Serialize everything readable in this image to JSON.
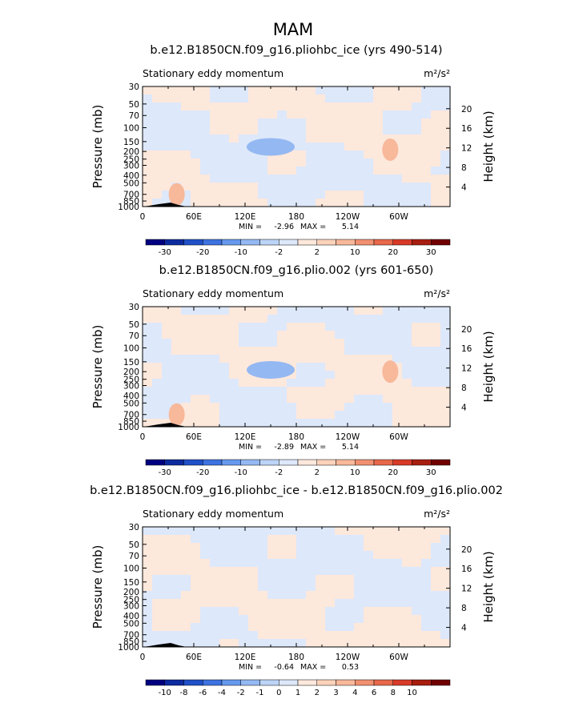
{
  "figure": {
    "title": "MAM"
  },
  "colors": {
    "neg": [
      "#000080",
      "#0d2ba0",
      "#2050c8",
      "#3d72e0",
      "#6699ee",
      "#94b8f2",
      "#bcd4f6",
      "#dde8fa"
    ],
    "pos": [
      "#fde8dc",
      "#fbd2ba",
      "#f8b89a",
      "#f19070",
      "#e8684a",
      "#d83a28",
      "#a81e10",
      "#700000"
    ]
  },
  "chart_data": [
    {
      "type": "heatmap",
      "title": "b.e12.B1850CN.f09_g16.pliohbc_ice (yrs 490-514)",
      "subtitle_left": "Stationary eddy momentum",
      "units": "m²/s²",
      "ylabel": "Pressure (mb)",
      "ylabel_right": "Height (km)",
      "yticks": [
        "30",
        "50",
        "70",
        "100",
        "150",
        "200",
        "250",
        "300",
        "400",
        "500",
        "700",
        "850",
        "1000"
      ],
      "yticks_right": [
        "20",
        "16",
        "12",
        "8",
        "4"
      ],
      "xticks": [
        "0",
        "60E",
        "120E",
        "180",
        "120W",
        "60W"
      ],
      "xlim": [
        0,
        360
      ],
      "ylim": [
        1000,
        30
      ],
      "min_label": "MIN =",
      "min": "-2.96",
      "max_label": "MAX =",
      "max": "5.14",
      "colorbar_labels": [
        "-30",
        "-20",
        "-10",
        "-2",
        "2",
        "10",
        "20",
        "30"
      ],
      "features": [
        {
          "lon": 150,
          "lev": 175,
          "value": -3
        },
        {
          "lon": 290,
          "lev": 190,
          "value": 4
        },
        {
          "lon": 40,
          "lev": 700,
          "value": 3
        }
      ]
    },
    {
      "type": "heatmap",
      "title": "b.e12.B1850CN.f09_g16.plio.002 (yrs 601-650)",
      "subtitle_left": "Stationary eddy momentum",
      "units": "m²/s²",
      "ylabel": "Pressure (mb)",
      "ylabel_right": "Height (km)",
      "yticks": [
        "30",
        "50",
        "70",
        "100",
        "150",
        "200",
        "250",
        "300",
        "400",
        "500",
        "700",
        "850",
        "1000"
      ],
      "yticks_right": [
        "20",
        "16",
        "12",
        "8",
        "4"
      ],
      "xticks": [
        "0",
        "60E",
        "120E",
        "180",
        "120W",
        "60W"
      ],
      "xlim": [
        0,
        360
      ],
      "ylim": [
        1000,
        30
      ],
      "min_label": "MIN =",
      "min": "-2.89",
      "max_label": "MAX =",
      "max": "5.14",
      "colorbar_labels": [
        "-30",
        "-20",
        "-10",
        "-2",
        "2",
        "10",
        "20",
        "30"
      ],
      "features": [
        {
          "lon": 150,
          "lev": 190,
          "value": -3
        },
        {
          "lon": 290,
          "lev": 200,
          "value": 4
        },
        {
          "lon": 40,
          "lev": 700,
          "value": 3
        }
      ]
    },
    {
      "type": "heatmap",
      "title": "b.e12.B1850CN.f09_g16.pliohbc_ice - b.e12.B1850CN.f09_g16.plio.002",
      "subtitle_left": "Stationary eddy momentum",
      "units": "m²/s²",
      "ylabel": "Pressure (mb)",
      "ylabel_right": "Height (km)",
      "yticks": [
        "30",
        "50",
        "70",
        "100",
        "150",
        "200",
        "250",
        "300",
        "400",
        "500",
        "700",
        "850",
        "1000"
      ],
      "yticks_right": [
        "20",
        "16",
        "12",
        "8",
        "4"
      ],
      "xticks": [
        "0",
        "60E",
        "120E",
        "180",
        "120W",
        "60W"
      ],
      "xlim": [
        0,
        360
      ],
      "ylim": [
        1000,
        30
      ],
      "min_label": "MIN =",
      "min": "-0.64",
      "max_label": "MAX =",
      "max": "0.53",
      "colorbar_labels": [
        "-10",
        "-8",
        "-6",
        "-4",
        "-2",
        "-1",
        "0",
        "1",
        "2",
        "3",
        "4",
        "6",
        "8",
        "10"
      ],
      "features": []
    }
  ]
}
